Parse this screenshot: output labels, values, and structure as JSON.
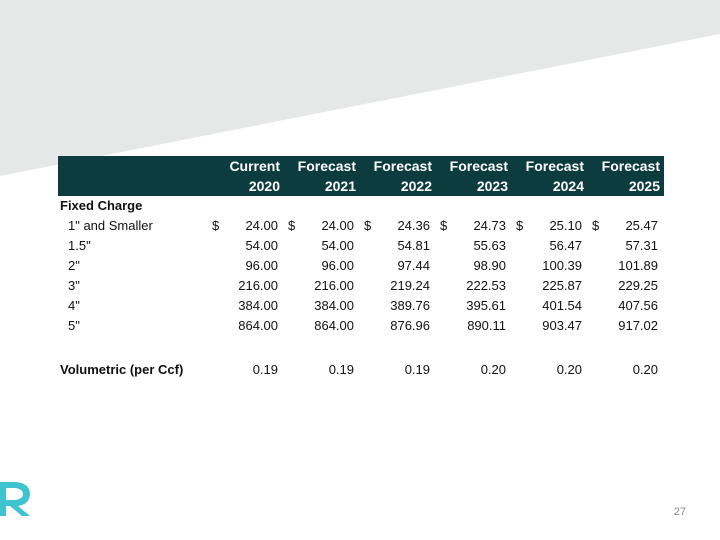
{
  "header": {
    "row1": [
      "Current",
      "Forecast",
      "Forecast",
      "Forecast",
      "Forecast",
      "Forecast"
    ],
    "row2": [
      "2020",
      "2021",
      "2022",
      "2023",
      "2024",
      "2025"
    ]
  },
  "section_label": "Fixed Charge",
  "currency_symbol": "$",
  "rows": [
    {
      "label": "1\" and Smaller",
      "values": [
        "24.00",
        "24.00",
        "24.36",
        "24.73",
        "25.10",
        "25.47"
      ]
    },
    {
      "label": "1.5\"",
      "values": [
        "54.00",
        "54.00",
        "54.81",
        "55.63",
        "56.47",
        "57.31"
      ]
    },
    {
      "label": "2\"",
      "values": [
        "96.00",
        "96.00",
        "97.44",
        "98.90",
        "100.39",
        "101.89"
      ]
    },
    {
      "label": "3\"",
      "values": [
        "216.00",
        "216.00",
        "219.24",
        "222.53",
        "225.87",
        "229.25"
      ]
    },
    {
      "label": "4\"",
      "values": [
        "384.00",
        "384.00",
        "389.76",
        "395.61",
        "401.54",
        "407.56"
      ]
    },
    {
      "label": "5\"",
      "values": [
        "864.00",
        "864.00",
        "876.96",
        "890.11",
        "903.47",
        "917.02"
      ]
    }
  ],
  "volumetric": {
    "label": "Volumetric (per Ccf)",
    "values": [
      "0.19",
      "0.19",
      "0.19",
      "0.20",
      "0.20",
      "0.20"
    ]
  },
  "page_number": "27",
  "colors": {
    "header_bg": "#0d3c3f",
    "band_gray": "#e6e7e7",
    "logo_teal": "#3ec3cf"
  },
  "icons": {
    "logo": "company-logo-icon"
  }
}
